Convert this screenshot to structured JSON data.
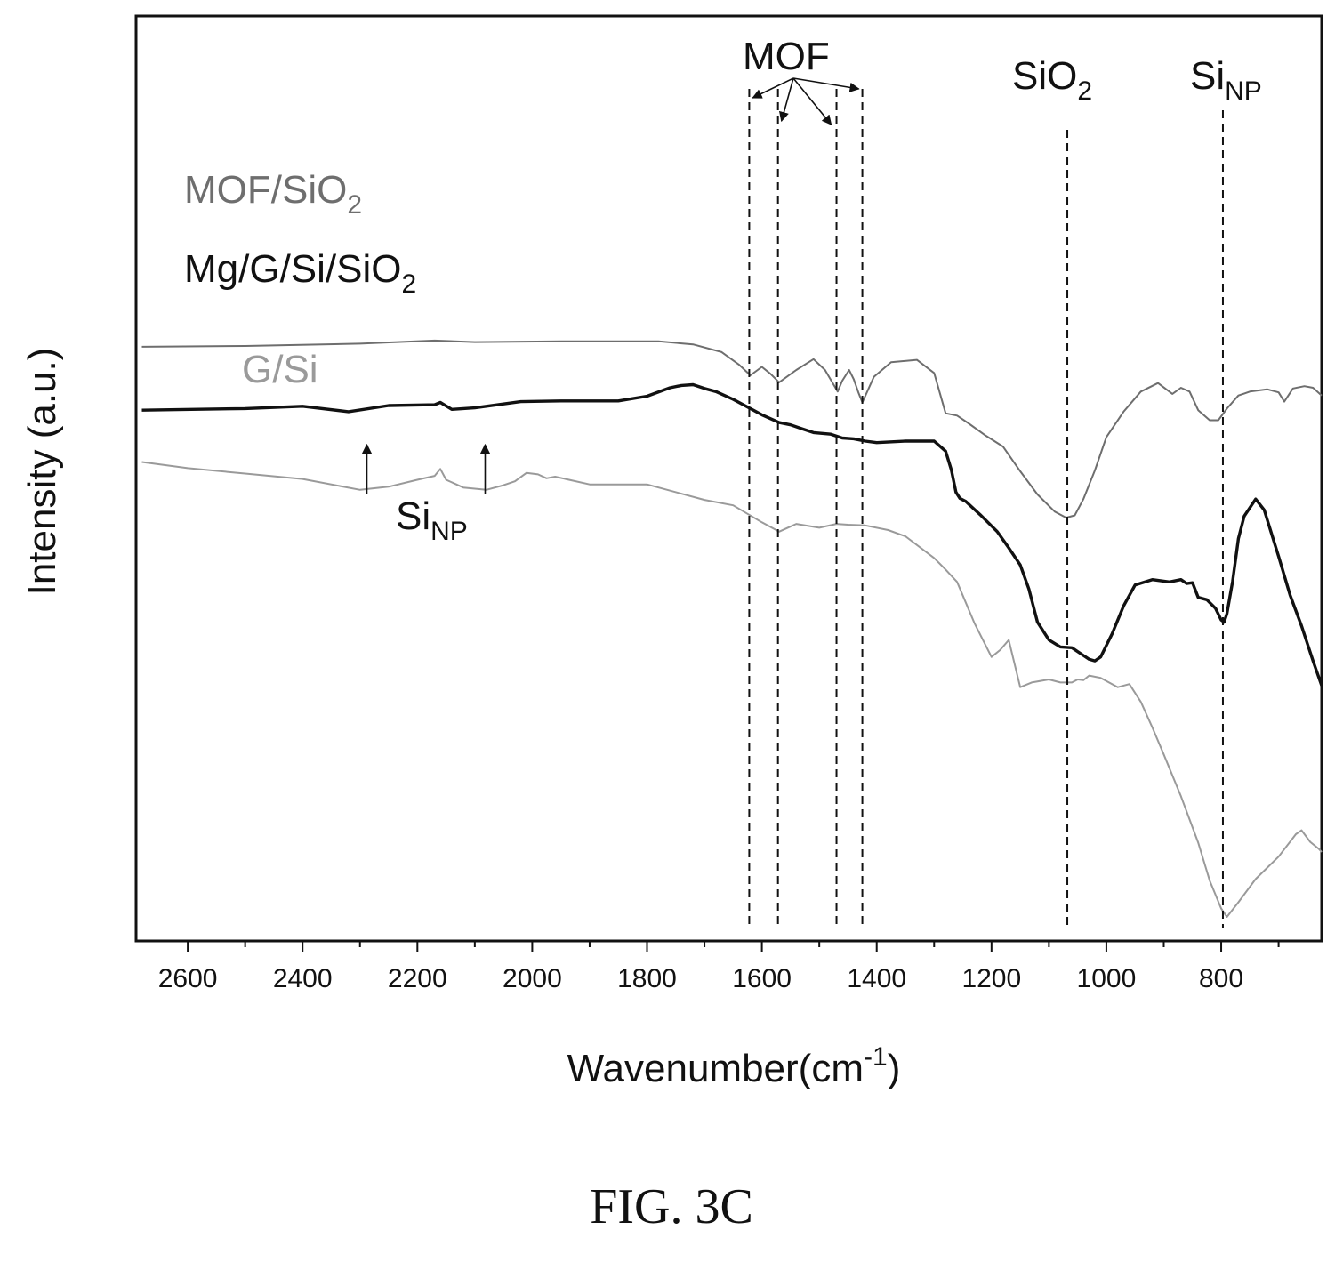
{
  "caption": "FIG. 3C",
  "chart_data": {
    "type": "line",
    "xlabel": {
      "main": "Wavenumber(cm",
      "sup": "-1",
      "close": ")"
    },
    "ylabel": "Intensity (a.u.)",
    "xlim": [
      2690,
      625
    ],
    "x_reversed": true,
    "ylim": [
      0,
      100
    ],
    "y_ticks_shown": false,
    "x_ticks": [
      2600,
      2400,
      2200,
      2000,
      1800,
      1600,
      1400,
      1200,
      1000,
      800
    ],
    "x_tick_labels": [
      "2600",
      "2400",
      "2200",
      "2000",
      "1800",
      "1600",
      "1400",
      "1200",
      "1000",
      "800"
    ],
    "grid": false,
    "series": [
      {
        "name": "MOF/SiO2",
        "label_main": "MOF/SiO",
        "label_sub": "2",
        "color": "#6e6e6e",
        "x": [
          2680,
          2500,
          2300,
          2170,
          2100,
          1950,
          1780,
          1720,
          1670,
          1640,
          1620,
          1600,
          1585,
          1570,
          1540,
          1510,
          1490,
          1475,
          1468,
          1460,
          1448,
          1440,
          1432,
          1425,
          1405,
          1375,
          1330,
          1300,
          1280,
          1260,
          1240,
          1210,
          1180,
          1150,
          1120,
          1090,
          1070,
          1055,
          1040,
          1020,
          1000,
          970,
          940,
          910,
          885,
          870,
          855,
          840,
          820,
          805,
          790,
          770,
          750,
          720,
          700,
          690,
          675,
          655,
          640,
          625
        ],
        "y": [
          74.5,
          74.6,
          74.9,
          75.3,
          75.1,
          75.2,
          75.2,
          74.8,
          73.8,
          72.2,
          70.8,
          71.9,
          71.0,
          69.9,
          71.5,
          72.9,
          71.5,
          69.6,
          68.7,
          70.1,
          71.5,
          70.3,
          68.6,
          67.3,
          70.6,
          72.5,
          72.8,
          71.1,
          65.9,
          65.6,
          64.6,
          63.0,
          61.6,
          58.4,
          55.4,
          53.2,
          52.4,
          52.7,
          54.8,
          58.5,
          62.8,
          66.1,
          68.7,
          69.8,
          68.4,
          69.2,
          68.7,
          66.3,
          65.0,
          65.0,
          66.5,
          68.2,
          68.7,
          69.0,
          68.6,
          67.4,
          69.1,
          69.4,
          69.2,
          68.2
        ]
      },
      {
        "name": "Mg/G/Si/SiO2",
        "label_main": "Mg/G/Si/SiO",
        "label_sub": "2",
        "color": "#111111",
        "x": [
          2680,
          2500,
          2400,
          2320,
          2250,
          2170,
          2160,
          2140,
          2100,
          2020,
          1950,
          1900,
          1850,
          1800,
          1760,
          1740,
          1720,
          1700,
          1680,
          1650,
          1620,
          1600,
          1570,
          1550,
          1530,
          1510,
          1480,
          1460,
          1440,
          1420,
          1400,
          1350,
          1300,
          1280,
          1270,
          1262,
          1255,
          1245,
          1220,
          1190,
          1170,
          1150,
          1135,
          1120,
          1100,
          1080,
          1060,
          1040,
          1030,
          1020,
          1010,
          990,
          970,
          950,
          920,
          890,
          870,
          860,
          850,
          840,
          825,
          810,
          800,
          795,
          790,
          780,
          770,
          760,
          740,
          725,
          710,
          700,
          680,
          660,
          640,
          625
        ],
        "y": [
          66.3,
          66.5,
          66.8,
          66.1,
          66.9,
          67.0,
          67.3,
          66.4,
          66.6,
          67.4,
          67.5,
          67.5,
          67.5,
          68.1,
          69.2,
          69.5,
          69.6,
          69.1,
          68.7,
          67.7,
          66.5,
          65.7,
          64.7,
          64.4,
          63.9,
          63.4,
          63.2,
          62.7,
          62.6,
          62.3,
          62.1,
          62.3,
          62.3,
          61.0,
          58.6,
          55.7,
          54.9,
          54.5,
          52.8,
          50.6,
          48.5,
          46.3,
          43.2,
          38.9,
          36.6,
          35.7,
          35.6,
          34.6,
          34.1,
          33.9,
          34.4,
          37.4,
          41.0,
          43.7,
          44.4,
          44.1,
          44.4,
          43.9,
          44.0,
          42.1,
          41.8,
          40.7,
          39.2,
          38.9,
          40.0,
          44.2,
          49.7,
          52.6,
          54.8,
          53.4,
          49.8,
          47.4,
          42.4,
          38.4,
          33.9,
          30.7
        ]
      },
      {
        "name": "G/Si",
        "label_main": "G/Si",
        "label_sub": "",
        "color": "#9a9a9a",
        "x": [
          2680,
          2600,
          2500,
          2400,
          2300,
          2250,
          2200,
          2170,
          2160,
          2150,
          2120,
          2080,
          2050,
          2030,
          2010,
          1990,
          1975,
          1960,
          1900,
          1800,
          1700,
          1650,
          1600,
          1570,
          1540,
          1500,
          1470,
          1450,
          1420,
          1380,
          1350,
          1300,
          1280,
          1260,
          1230,
          1200,
          1185,
          1170,
          1150,
          1130,
          1100,
          1080,
          1060,
          1050,
          1040,
          1030,
          1010,
          1000,
          980,
          960,
          940,
          920,
          900,
          870,
          840,
          820,
          800,
          790,
          770,
          740,
          700,
          670,
          660,
          645,
          630,
          625
        ],
        "y": [
          59.6,
          58.8,
          58.1,
          57.4,
          56.0,
          56.4,
          57.3,
          57.8,
          58.7,
          57.3,
          56.3,
          56.0,
          56.6,
          57.1,
          58.2,
          58.0,
          57.5,
          57.7,
          56.7,
          56.7,
          54.7,
          54.0,
          51.8,
          50.6,
          51.6,
          51.1,
          51.6,
          51.5,
          51.4,
          50.8,
          50.0,
          47.2,
          45.7,
          44.1,
          38.8,
          34.4,
          35.3,
          36.6,
          30.5,
          31.1,
          31.5,
          31.1,
          31.1,
          31.5,
          31.4,
          32.0,
          31.7,
          31.3,
          30.5,
          30.9,
          28.6,
          25.3,
          21.8,
          16.4,
          10.4,
          5.5,
          1.9,
          0.8,
          2.7,
          5.7,
          8.6,
          11.5,
          12.0,
          10.5,
          9.6,
          9.2
        ]
      }
    ],
    "annotations": [
      {
        "text": "MOF",
        "sub": "",
        "markers_x": [
          1622,
          1572,
          1470,
          1425
        ]
      },
      {
        "text": "SiO",
        "sub": "2",
        "marker_x": 1068
      },
      {
        "text": "Si",
        "sub": "NP",
        "marker_x": 797
      },
      {
        "text": "Si",
        "sub": "NP",
        "arrows_x": [
          2288,
          2082
        ]
      }
    ]
  }
}
